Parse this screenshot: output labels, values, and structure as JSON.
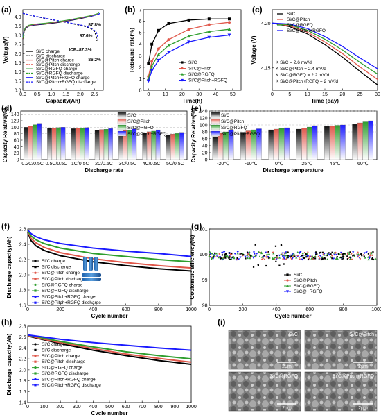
{
  "panels": [
    {
      "letter": "(a)",
      "label": "Capacity vs voltage"
    },
    {
      "letter": "(b)",
      "label": "Rebound rate vs time"
    },
    {
      "letter": "(c)",
      "label": "Voltage vs time"
    },
    {
      "letter": "(d)",
      "label": "Capacity vs discharge rate"
    },
    {
      "letter": "(e)",
      "label": "Capacity vs discharge temperature"
    },
    {
      "letter": "(f)",
      "label": "Cycle capacity"
    },
    {
      "letter": "(g)",
      "label": "Coulombic efficiency"
    },
    {
      "letter": "(h)",
      "label": "Cycle capacity"
    },
    {
      "letter": "(i)",
      "label": "SEM images"
    }
  ],
  "colors": {
    "siC": "#000000",
    "pitch": "#e0574a",
    "rgfq": "#2e9e2e",
    "both": "#1a1aff",
    "gray": "#8a8a8a"
  },
  "chart_data": [
    {
      "id": "a",
      "type": "line",
      "xlabel": "Capacity(Ah)",
      "ylabel": "Voltage(V)",
      "xlim": [
        0,
        2.8
      ],
      "ylim": [
        0,
        4.4
      ],
      "xticks": [
        0.0,
        0.5,
        1.0,
        1.5,
        2.0,
        2.5
      ],
      "yticks": [
        0,
        0.5,
        1.0,
        1.5,
        2.0,
        2.5,
        3.0,
        3.5,
        4.0
      ],
      "annotations": [
        "87.8%",
        "87.6%",
        "ICE=87.3%",
        "86.2%"
      ],
      "legend": [
        "Si/C charge",
        "Si/C discharge",
        "Si/C@Pitch charge",
        "Si/C@Pitch discharge",
        "Si/C@RGFQ charge",
        "Si/C@RGFQ discharge",
        "Si/C@Pitch+RGFQ charge",
        "Si/C@Pitch+RGFQ discharge"
      ],
      "series": [
        {
          "name": "Si/C charge",
          "color": "#000000",
          "x": [
            0,
            0.05,
            0.1,
            0.2,
            0.4,
            0.8,
            1.2,
            1.6,
            2.0,
            2.4,
            2.6,
            2.62
          ],
          "y": [
            2.8,
            3.25,
            3.4,
            3.5,
            3.56,
            3.62,
            3.7,
            3.8,
            3.92,
            4.05,
            4.15,
            4.2
          ]
        },
        {
          "name": "Si/C@Pitch+RGFQ charge",
          "color": "#1a1aff",
          "x": [
            0,
            0.05,
            0.1,
            0.2,
            0.4,
            0.8,
            1.2,
            1.6,
            2.0,
            2.4,
            2.65,
            2.68
          ],
          "y": [
            2.9,
            3.3,
            3.42,
            3.52,
            3.58,
            3.64,
            3.72,
            3.82,
            3.94,
            4.06,
            4.16,
            4.2
          ]
        },
        {
          "name": "Si/C discharge",
          "color": "#000000",
          "dashed": true,
          "x": [
            0,
            0.4,
            0.8,
            1.2,
            1.6,
            2.0,
            2.2,
            2.4,
            2.5,
            2.55,
            2.58
          ],
          "y": [
            4.2,
            4.05,
            3.92,
            3.8,
            3.68,
            3.55,
            3.48,
            3.35,
            3.2,
            3.0,
            2.7
          ]
        },
        {
          "name": "Si/C@Pitch+RGFQ discharge",
          "color": "#1a1aff",
          "dashed": true,
          "x": [
            0,
            0.4,
            0.8,
            1.2,
            1.6,
            2.0,
            2.2,
            2.4,
            2.55,
            2.6,
            2.62
          ],
          "y": [
            4.2,
            4.06,
            3.93,
            3.81,
            3.69,
            3.57,
            3.5,
            3.38,
            3.2,
            3.0,
            2.75
          ]
        }
      ]
    },
    {
      "id": "b",
      "type": "line",
      "xlabel": "Time(h)",
      "ylabel": "Rebound rate(%)",
      "xlim": [
        -3,
        55
      ],
      "ylim": [
        0,
        7
      ],
      "xticks": [
        0,
        10,
        20,
        30,
        40,
        50
      ],
      "yticks": [
        0,
        1,
        2,
        3,
        4,
        5,
        6,
        7
      ],
      "legend": [
        "Si/C",
        "Si/C@Pitch",
        "Si/C@RGFQ",
        "Si/C@Pitch+RGFQ"
      ],
      "series": [
        {
          "name": "Si/C",
          "color": "#000000",
          "marker": "square",
          "x": [
            0,
            2,
            6,
            12,
            24,
            36,
            48
          ],
          "y": [
            2.3,
            4.0,
            5.2,
            5.8,
            6.1,
            6.2,
            6.2
          ]
        },
        {
          "name": "Si/C@Pitch",
          "color": "#e0574a",
          "marker": "circle",
          "x": [
            0,
            2,
            6,
            12,
            24,
            36,
            48
          ],
          "y": [
            1.2,
            2.5,
            3.6,
            4.4,
            5.3,
            5.7,
            5.9
          ]
        },
        {
          "name": "Si/C@RGFQ",
          "color": "#2e9e2e",
          "marker": "triangle",
          "x": [
            0,
            2,
            6,
            12,
            24,
            36,
            48
          ],
          "y": [
            1.0,
            2.1,
            3.1,
            3.9,
            4.7,
            5.1,
            5.3
          ]
        },
        {
          "name": "Si/C@Pitch+RGFQ",
          "color": "#1a1aff",
          "marker": "triangle-down",
          "x": [
            0,
            2,
            6,
            12,
            24,
            36,
            48
          ],
          "y": [
            0.8,
            1.7,
            2.6,
            3.3,
            4.2,
            4.6,
            4.8
          ]
        }
      ]
    },
    {
      "id": "c",
      "type": "line",
      "xlabel": "Time (day)",
      "ylabel": "Voltage (V)",
      "xlim": [
        0,
        30
      ],
      "ylim": [
        4.125,
        4.215
      ],
      "xticks": [
        0,
        5,
        10,
        15,
        20,
        25,
        30
      ],
      "yticks": [
        4.15,
        4.2
      ],
      "legend": [
        "Si/C",
        "Si/C@Pitch",
        "Si/C@RGFQ",
        "Si/C@Pitch+RGFQ"
      ],
      "k_values": [
        "K Si/C = 2.6 mV/d",
        "K Si/C@Pitch = 2.4 mV/d",
        "K Si/C@RGFQ = 2.2 mV/d",
        "K Si/C@Pitch+RGFQ = 2 mV/d"
      ],
      "series": [
        {
          "name": "Si/C",
          "color": "#000000",
          "x": [
            0,
            5,
            10,
            15,
            20,
            25,
            30
          ],
          "y": [
            4.2,
            4.196,
            4.188,
            4.176,
            4.162,
            4.146,
            4.131
          ]
        },
        {
          "name": "Si/C@Pitch",
          "color": "#e0574a",
          "x": [
            0,
            5,
            10,
            15,
            20,
            25,
            30
          ],
          "y": [
            4.2,
            4.197,
            4.19,
            4.179,
            4.166,
            4.151,
            4.137
          ]
        },
        {
          "name": "Si/C@RGFQ",
          "color": "#2e9e2e",
          "x": [
            0,
            5,
            10,
            15,
            20,
            25,
            30
          ],
          "y": [
            4.2,
            4.198,
            4.192,
            4.182,
            4.17,
            4.156,
            4.143
          ]
        },
        {
          "name": "Si/C@Pitch+RGFQ",
          "color": "#1a1aff",
          "x": [
            0,
            5,
            10,
            15,
            20,
            25,
            30
          ],
          "y": [
            4.2,
            4.199,
            4.194,
            4.185,
            4.174,
            4.161,
            4.149
          ]
        }
      ]
    },
    {
      "id": "d",
      "type": "bar",
      "xlabel": "Discharge rate",
      "ylabel": "Capacity Relative(%)",
      "ylim": [
        0,
        150
      ],
      "yticks": [
        0,
        20,
        40,
        60,
        80,
        100,
        120,
        140
      ],
      "categories": [
        "0.2C/0.5C",
        "0.5C/0.5C",
        "1C/0.5C",
        "2C/0.5C",
        "3C/0.5C",
        "4C/0.5C",
        "5C/0.5C"
      ],
      "legend": [
        "Si/C",
        "Si/C@Pitch",
        "Si/C@RGFQ",
        "Si/C@Pitch+RGFQ"
      ],
      "series": [
        {
          "name": "Si/C",
          "values": [
            100,
            98,
            96,
            91,
            87,
            82,
            77
          ]
        },
        {
          "name": "Si/C@Pitch",
          "values": [
            104,
            98,
            97,
            93,
            90,
            86,
            79
          ]
        },
        {
          "name": "Si/C@RGFQ",
          "values": [
            108,
            99,
            98,
            94,
            92,
            88,
            81
          ]
        },
        {
          "name": "Si/C@Pitch+RGFQ",
          "values": [
            112,
            100,
            99,
            96,
            95,
            92,
            84
          ]
        }
      ]
    },
    {
      "id": "e",
      "type": "bar",
      "xlabel": "Discharge temperature",
      "ylabel": "Capacity Relative(%)",
      "ylim": [
        0,
        140
      ],
      "yticks": [
        0,
        20,
        40,
        60,
        80,
        100,
        120,
        140
      ],
      "categories": [
        "-20℃",
        "-10℃",
        "0℃",
        "25℃",
        "45℃",
        "60℃"
      ],
      "legend": [
        "Si/C",
        "Si/C@Pitch",
        "Si/C@RGFQ",
        "Si/C@Pitch+RGFQ"
      ],
      "series": [
        {
          "name": "Si/C",
          "values": [
            66,
            79,
            86,
            88,
            96,
            102
          ]
        },
        {
          "name": "Si/C@Pitch",
          "values": [
            76,
            83,
            88,
            91,
            97,
            106
          ]
        },
        {
          "name": "Si/C@RGFQ",
          "values": [
            80,
            86,
            90,
            94,
            99,
            109
          ]
        },
        {
          "name": "Si/C@Pitch+RGFQ",
          "values": [
            86,
            89,
            92,
            98,
            100,
            112
          ]
        }
      ]
    },
    {
      "id": "f",
      "type": "line",
      "xlabel": "Cycle number",
      "ylabel": "Discharge capacity(Ah)",
      "xlim": [
        0,
        1000
      ],
      "ylim": [
        1.6,
        2.6
      ],
      "xticks": [
        0,
        200,
        400,
        600,
        800,
        1000
      ],
      "yticks": [
        1.6,
        1.8,
        2.0,
        2.2,
        2.4,
        2.6
      ],
      "legend": [
        "Si/C charge",
        "Si/C discharge",
        "Si/C@Pitch charge",
        "Si/C@Pitch discharge",
        "Si/C@RGFQ charge",
        "Si/C@RGFQ discharge",
        "Si/C@Pitch+RGFQ charge",
        "Si/C@Pitch+RGFQ discharge"
      ],
      "series": [
        {
          "name": "Si/C",
          "color": "#000000",
          "x": [
            0,
            20,
            50,
            100,
            200,
            400,
            600,
            800,
            1000
          ],
          "y": [
            2.56,
            2.45,
            2.38,
            2.32,
            2.25,
            2.17,
            2.12,
            2.08,
            2.05
          ]
        },
        {
          "name": "Si/C@Pitch",
          "color": "#e0574a",
          "x": [
            0,
            20,
            50,
            100,
            200,
            400,
            600,
            800,
            1000
          ],
          "y": [
            2.57,
            2.48,
            2.42,
            2.36,
            2.29,
            2.21,
            2.16,
            2.12,
            2.09
          ]
        },
        {
          "name": "Si/C@RGFQ",
          "color": "#2e9e2e",
          "x": [
            0,
            20,
            50,
            100,
            200,
            400,
            600,
            800,
            1000
          ],
          "y": [
            2.58,
            2.51,
            2.46,
            2.41,
            2.35,
            2.28,
            2.24,
            2.2,
            2.17
          ]
        },
        {
          "name": "Si/C@Pitch+RGFQ",
          "color": "#1a1aff",
          "x": [
            0,
            20,
            50,
            100,
            200,
            400,
            600,
            800,
            1000
          ],
          "y": [
            2.59,
            2.54,
            2.5,
            2.46,
            2.41,
            2.35,
            2.31,
            2.28,
            2.24
          ]
        }
      ]
    },
    {
      "id": "g",
      "type": "scatter",
      "xlabel": "Cycle number",
      "ylabel": "Coulombic efficiency(%)",
      "xlim": [
        0,
        1000
      ],
      "ylim": [
        98,
        101
      ],
      "xticks": [
        0,
        200,
        400,
        600,
        800,
        1000
      ],
      "yticks": [
        98,
        99,
        100,
        101
      ],
      "legend": [
        "Si/C",
        "Si/C@Pitch",
        "Si/C@RGFQ",
        "Si/C@+RGFQ"
      ],
      "baseline": 99.95
    },
    {
      "id": "h",
      "type": "line",
      "xlabel": "Cycle number",
      "ylabel": "Discharge capacity(Ah)",
      "xlim": [
        0,
        1000
      ],
      "ylim": [
        1.4,
        2.8
      ],
      "xticks": [
        0,
        100,
        200,
        300,
        400,
        500,
        600,
        700,
        800,
        900,
        1000
      ],
      "yticks": [
        1.4,
        1.6,
        1.8,
        2.0,
        2.2,
        2.4,
        2.6,
        2.8
      ],
      "legend": [
        "Si/C charge",
        "Si/C discharge",
        "Si/C@Pitch charge",
        "Si/C@Pitch discharge",
        "Si/C@RGFQ charge",
        "Si/C@RGFQ discharge",
        "Si/C@Pitch+RGFQ charge",
        "Si/C@Pitch+RGFQ discharge"
      ],
      "series": [
        {
          "name": "Si/C",
          "color": "#000000",
          "x": [
            0,
            100,
            200,
            400,
            600,
            800,
            1000
          ],
          "y": [
            2.62,
            2.55,
            2.48,
            2.36,
            2.26,
            2.17,
            2.1
          ]
        },
        {
          "name": "Si/C@Pitch",
          "color": "#e0574a",
          "x": [
            0,
            100,
            200,
            400,
            600,
            800,
            1000
          ],
          "y": [
            2.63,
            2.56,
            2.5,
            2.39,
            2.29,
            2.21,
            2.14
          ]
        },
        {
          "name": "Si/C@RGFQ",
          "color": "#2e9e2e",
          "x": [
            0,
            100,
            200,
            400,
            600,
            800,
            1000
          ],
          "y": [
            2.64,
            2.58,
            2.52,
            2.42,
            2.33,
            2.26,
            2.2
          ]
        },
        {
          "name": "Si/C@Pitch+RGFQ",
          "color": "#1a1aff",
          "x": [
            0,
            100,
            200,
            400,
            600,
            800,
            1000
          ],
          "y": [
            2.64,
            2.6,
            2.56,
            2.5,
            2.45,
            2.4,
            2.36
          ]
        }
      ]
    }
  ],
  "sem": {
    "labels": [
      "Si/C",
      "Si/C@Pitch",
      "Si/C@RGFQ",
      "Si/C@Pitch+RGFQ"
    ],
    "scale": "2μm"
  }
}
